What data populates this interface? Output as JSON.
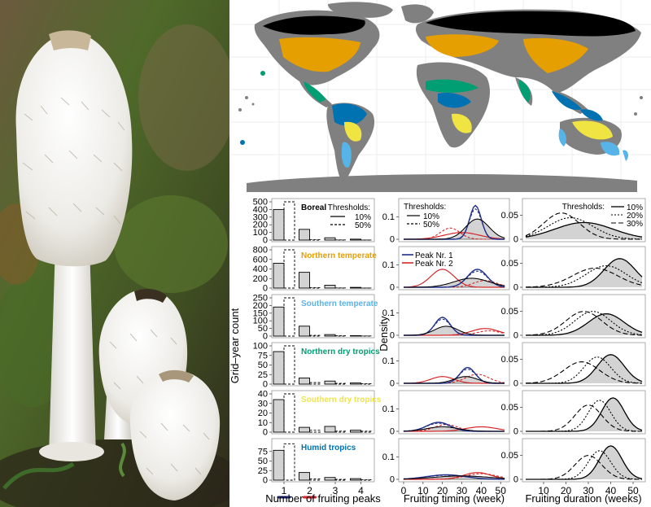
{
  "palette": {
    "boreal": "#000000",
    "northern_temperate": "#E69F00",
    "southern_temperate": "#56B4E9",
    "northern_dry_tropics": "#009E73",
    "southern_dry_tropics": "#F0E442",
    "humid_tropics": "#0072B2",
    "land": "#808080",
    "peak1": "#1f2e8a",
    "peak2": "#d62728",
    "fill": "#d3d3d3"
  },
  "photo": {
    "subject": "shaggy-ink-cap-mushrooms"
  },
  "chart_data": [
    {
      "type": "bar",
      "panel": "number-of-fruiting-peaks",
      "xlabel": "Number of fruiting peaks",
      "ylabel": "Grid–year count",
      "categories": [
        "1",
        "2",
        "3",
        "4"
      ],
      "legend_title": "Thresholds:",
      "legend": [
        "10%",
        "50%"
      ],
      "regions": [
        {
          "name": "Boreal",
          "ylim": [
            0,
            500
          ],
          "yticks": [
            "0",
            "100",
            "200",
            "300",
            "400",
            "500"
          ],
          "values_10": [
            400,
            140,
            30,
            12
          ],
          "values_50": [
            500,
            5,
            2,
            1
          ]
        },
        {
          "name": "Northern temperate",
          "ylim": [
            0,
            800
          ],
          "yticks": [
            "0",
            "200",
            "400",
            "600",
            "800"
          ],
          "values_10": [
            520,
            330,
            60,
            15
          ],
          "values_50": [
            800,
            10,
            3,
            1
          ]
        },
        {
          "name": "Southern temperate",
          "ylim": [
            0,
            250
          ],
          "yticks": [
            "0",
            "50",
            "100",
            "150",
            "200",
            "250"
          ],
          "values_10": [
            190,
            65,
            10,
            3
          ],
          "values_50": [
            250,
            5,
            2,
            1
          ]
        },
        {
          "name": "Northern dry tropics",
          "ylim": [
            0,
            100
          ],
          "yticks": [
            "0",
            "25",
            "50",
            "75",
            "100"
          ],
          "values_10": [
            85,
            16,
            8,
            3
          ],
          "values_50": [
            100,
            4,
            2,
            1
          ]
        },
        {
          "name": "Southern dry tropics",
          "ylim": [
            0,
            40
          ],
          "yticks": [
            "0",
            "10",
            "20",
            "30",
            "40"
          ],
          "values_10": [
            34,
            5,
            6,
            2
          ],
          "values_50": [
            40,
            2,
            1,
            1
          ]
        },
        {
          "name": "Humid tropics",
          "ylim": [
            0,
            100
          ],
          "yticks": [
            "0",
            "25",
            "50",
            "75"
          ],
          "values_10": [
            78,
            20,
            7,
            4
          ],
          "values_50": [
            95,
            3,
            2,
            1
          ]
        }
      ]
    },
    {
      "type": "line",
      "panel": "fruiting-timing",
      "xlabel": "Fruiting timing (week)",
      "ylabel": "Density",
      "xlim": [
        0,
        52
      ],
      "xticks": [
        "0",
        "10",
        "20",
        "30",
        "40",
        "50"
      ],
      "ylim": [
        0,
        0.17
      ],
      "yticks": [
        "0",
        "0.1"
      ],
      "threshold_legend_title": "Thresholds:",
      "threshold_legend": [
        "10%",
        "50%"
      ],
      "peak_legend": [
        "Peak Nr. 1",
        "Peak Nr. 2"
      ],
      "regions": [
        {
          "name": "Boreal",
          "overall": [
            38,
            6,
            0.09
          ],
          "peak1": [
            37,
            3,
            0.15
          ],
          "peak2": [
            30,
            9,
            0.03
          ],
          "peak2_50": [
            24,
            5,
            0.05
          ]
        },
        {
          "name": "Northern temperate",
          "overall": [
            35,
            9,
            0.04
          ],
          "peak1": [
            38,
            5,
            0.08
          ],
          "peak2": [
            20,
            6,
            0.08
          ],
          "peak2_50": [
            42,
            6,
            0.03
          ]
        },
        {
          "name": "Southern temperate",
          "overall": [
            22,
            6,
            0.04
          ],
          "peak1": [
            20,
            4,
            0.08
          ],
          "peak2": [
            42,
            7,
            0.03
          ],
          "peak2_50": [
            44,
            6,
            0.02
          ]
        },
        {
          "name": "Northern dry tropics",
          "overall": [
            32,
            6,
            0.03
          ],
          "peak1": [
            33,
            4,
            0.07
          ],
          "peak2": [
            20,
            6,
            0.03
          ],
          "peak2_50": [
            38,
            6,
            0.04
          ]
        },
        {
          "name": "Southern dry tropics",
          "overall": [
            20,
            8,
            0.02
          ],
          "peak1": [
            18,
            6,
            0.04
          ],
          "peak2": [
            40,
            8,
            0.02
          ],
          "peak2_50": [
            22,
            6,
            0.03
          ]
        },
        {
          "name": "Humid tropics",
          "overall": [
            30,
            14,
            0.015
          ],
          "peak1": [
            22,
            10,
            0.02
          ],
          "peak2": [
            38,
            7,
            0.03
          ],
          "peak2_50": [
            40,
            8,
            0.025
          ]
        }
      ]
    },
    {
      "type": "area",
      "panel": "fruiting-duration",
      "xlabel": "Fruiting duration (weeks)",
      "xlim": [
        0,
        52
      ],
      "xticks": [
        "10",
        "20",
        "30",
        "40",
        "50"
      ],
      "ylim": [
        0,
        0.08
      ],
      "yticks": [
        "0",
        "0.05"
      ],
      "legend_title": "Thresholds:",
      "legend": [
        "10%",
        "20%",
        "30%"
      ],
      "regions": [
        {
          "name": "Boreal",
          "t10": [
            28,
            13,
            0.035
          ],
          "t20": [
            22,
            10,
            0.045
          ],
          "t30": [
            18,
            8,
            0.055
          ]
        },
        {
          "name": "Northern temperate",
          "t10": [
            44,
            7,
            0.06
          ],
          "t20": [
            38,
            9,
            0.045
          ],
          "t30": [
            33,
            10,
            0.04
          ]
        },
        {
          "name": "Southern temperate",
          "t10": [
            38,
            8,
            0.045
          ],
          "t20": [
            32,
            8,
            0.05
          ],
          "t30": [
            28,
            8,
            0.05
          ]
        },
        {
          "name": "Northern dry tropics",
          "t10": [
            40,
            6,
            0.06
          ],
          "t20": [
            34,
            6,
            0.055
          ],
          "t30": [
            27,
            8,
            0.045
          ]
        },
        {
          "name": "Southern dry tropics",
          "t10": [
            41,
            5,
            0.07
          ],
          "t20": [
            35,
            5,
            0.065
          ],
          "t30": [
            30,
            6,
            0.055
          ]
        },
        {
          "name": "Humid tropics",
          "t10": [
            40,
            5,
            0.07
          ],
          "t20": [
            35,
            5,
            0.06
          ],
          "t30": [
            30,
            6,
            0.05
          ]
        }
      ]
    }
  ]
}
